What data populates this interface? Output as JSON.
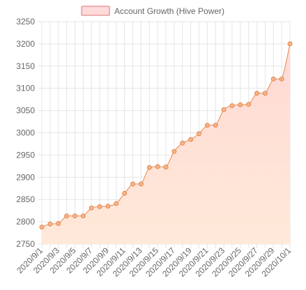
{
  "chart_data": {
    "type": "area",
    "x": [
      "2020/9/1",
      "2020/9/2",
      "2020/9/3",
      "2020/9/4",
      "2020/9/5",
      "2020/9/6",
      "2020/9/7",
      "2020/9/8",
      "2020/9/9",
      "2020/9/10",
      "2020/9/11",
      "2020/9/12",
      "2020/9/13",
      "2020/9/14",
      "2020/9/15",
      "2020/9/16",
      "2020/9/17",
      "2020/9/18",
      "2020/9/19",
      "2020/9/20",
      "2020/9/21",
      "2020/9/22",
      "2020/9/23",
      "2020/9/24",
      "2020/9/25",
      "2020/9/26",
      "2020/9/27",
      "2020/9/28",
      "2020/9/29",
      "2020/9/30",
      "2020/10/1"
    ],
    "x_tick_labels": [
      "2020/9/1",
      "2020/9/3",
      "2020/9/5",
      "2020/9/7",
      "2020/9/9",
      "2020/9/11",
      "2020/9/13",
      "2020/9/15",
      "2020/9/17",
      "2020/9/19",
      "2020/9/21",
      "2020/9/23",
      "2020/9/25",
      "2020/9/27",
      "2020/9/29",
      "2020/10/1"
    ],
    "series": [
      {
        "name": "Account Growth (Hive Power)",
        "values": [
          2788,
          2795,
          2796,
          2813,
          2813,
          2813,
          2831,
          2834,
          2835,
          2841,
          2864,
          2885,
          2885,
          2922,
          2924,
          2923,
          2958,
          2977,
          2985,
          2998,
          3017,
          3017,
          3052,
          3061,
          3063,
          3064,
          3089,
          3089,
          3121,
          3121,
          3200
        ]
      }
    ],
    "ylim": [
      2750,
      3250
    ],
    "y_ticks": [
      2750,
      2800,
      2850,
      2900,
      2950,
      3000,
      3050,
      3100,
      3150,
      3200,
      3250
    ],
    "grid": true,
    "legend_position": "top-center",
    "colors": {
      "line": "#e8894f",
      "point_fill": "#f2b48c",
      "area_top": "#ffd9d4",
      "area_bottom": "#ffe9d9",
      "legend_fill": "#ffdada",
      "legend_stroke": "#e0707a",
      "grid": "#e5e5e5",
      "text": "#666666"
    }
  }
}
